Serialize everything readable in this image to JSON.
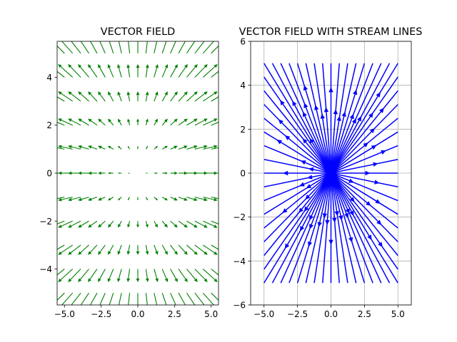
{
  "chart_data": [
    {
      "type": "quiver",
      "title": "VECTOR FIELD",
      "field": "radial: u = x / 5, v = y / 5 (vector points away from origin)",
      "grid_x": [
        -5,
        -4.444,
        -3.889,
        -3.333,
        -2.778,
        -2.222,
        -1.667,
        -1.111,
        -0.556,
        0,
        0.556,
        1.111,
        1.667,
        2.222,
        2.778,
        3.333,
        3.889,
        4.444,
        5
      ],
      "grid_y": [
        -5,
        -4,
        -3,
        -2,
        -1,
        0,
        1,
        2,
        3,
        4,
        5
      ],
      "xlim": [
        -5.5,
        5.5
      ],
      "ylim": [
        -5.5,
        5.5
      ],
      "xticks": [
        -5,
        -2.5,
        0,
        2.5,
        5
      ],
      "xtick_labels": [
        "−5.0",
        "−2.5",
        "0.0",
        "2.5",
        "5.0"
      ],
      "yticks": [
        -4,
        -2,
        0,
        2,
        4
      ],
      "ytick_labels": [
        "−4",
        "−2",
        "0",
        "2",
        "4"
      ],
      "grid": false,
      "color": "#008000"
    },
    {
      "type": "streamplot",
      "title": "VECTOR FIELD WITH STREAM LINES",
      "field": "radial: u = x, v = y (stream lines radiate from origin)",
      "xlim": [
        -6,
        6
      ],
      "ylim": [
        -6,
        6
      ],
      "data_extent": {
        "x": [
          -5,
          5
        ],
        "y": [
          -5,
          5
        ]
      },
      "xticks": [
        -5,
        -2.5,
        0,
        2.5,
        5
      ],
      "xtick_labels": [
        "−5.0",
        "−2.5",
        "0.0",
        "2.5",
        "5.0"
      ],
      "yticks": [
        -6,
        -4,
        -2,
        0,
        2,
        4,
        6
      ],
      "ytick_labels": [
        "−6",
        "−4",
        "−2",
        "0",
        "2",
        "4",
        "6"
      ],
      "grid": true,
      "color": "#0000ff"
    }
  ]
}
